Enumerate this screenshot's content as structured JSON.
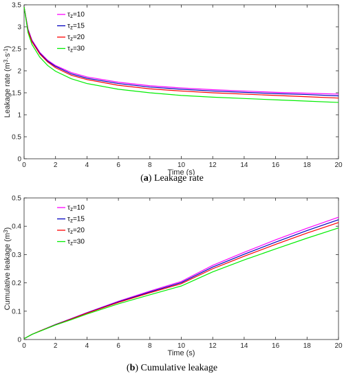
{
  "chart_data": [
    {
      "type": "line",
      "caption_letter": "a",
      "caption_text": "Leakage rate",
      "xlabel": "Time (s)",
      "ylabel_main": "Leakage rate (m",
      "ylabel_sup1": "3",
      "ylabel_mid": "·s",
      "ylabel_sup2": "-1",
      "ylabel_end": ")",
      "xlim": [
        0,
        20
      ],
      "ylim": [
        0,
        3.5
      ],
      "xticks": [
        0,
        2,
        4,
        6,
        8,
        10,
        12,
        14,
        16,
        18,
        20
      ],
      "yticks": [
        0,
        0.5,
        1,
        1.5,
        2,
        2.5,
        3,
        3.5
      ],
      "ytick_labels": [
        "0",
        "0.5",
        "1",
        "1.5",
        "2",
        "2.5",
        "3",
        "3.5"
      ],
      "grid": false,
      "legend_position": "top-left",
      "x": [
        0,
        0.25,
        0.5,
        1,
        1.5,
        2,
        3,
        4,
        6,
        8,
        10,
        12,
        14,
        16,
        18,
        20
      ],
      "series": [
        {
          "name_base": "τ",
          "name_sub": "z",
          "name_rest": "=10",
          "color": "#ff00ff",
          "values": [
            3.45,
            2.95,
            2.7,
            2.42,
            2.24,
            2.12,
            1.96,
            1.86,
            1.74,
            1.66,
            1.61,
            1.57,
            1.54,
            1.51,
            1.49,
            1.47
          ]
        },
        {
          "name_base": "τ",
          "name_sub": "z",
          "name_rest": "=15",
          "color": "#0000bf",
          "values": [
            3.45,
            2.93,
            2.68,
            2.4,
            2.22,
            2.1,
            1.93,
            1.83,
            1.71,
            1.63,
            1.58,
            1.54,
            1.51,
            1.48,
            1.46,
            1.43
          ]
        },
        {
          "name_base": "τ",
          "name_sub": "z",
          "name_rest": "=20",
          "color": "#ff0000",
          "values": [
            3.45,
            2.91,
            2.66,
            2.38,
            2.2,
            2.07,
            1.9,
            1.8,
            1.67,
            1.59,
            1.54,
            1.5,
            1.47,
            1.44,
            1.41,
            1.38
          ]
        },
        {
          "name_base": "τ",
          "name_sub": "z",
          "name_rest": "=30",
          "color": "#00ee00",
          "values": [
            3.45,
            2.87,
            2.6,
            2.31,
            2.12,
            1.99,
            1.82,
            1.71,
            1.58,
            1.5,
            1.44,
            1.4,
            1.37,
            1.34,
            1.31,
            1.28
          ]
        }
      ]
    },
    {
      "type": "line",
      "caption_letter": "b",
      "caption_text": "Cumulative leakage",
      "xlabel": "Time (s)",
      "ylabel_main": "Cumulative leakage (m",
      "ylabel_sup1": "3",
      "ylabel_mid": "",
      "ylabel_sup2": "",
      "ylabel_end": ")",
      "xlim": [
        0,
        20
      ],
      "ylim": [
        0,
        0.5
      ],
      "xticks": [
        0,
        2,
        4,
        6,
        8,
        10,
        12,
        14,
        16,
        18,
        20
      ],
      "yticks": [
        0,
        0.1,
        0.2,
        0.3,
        0.4,
        0.5
      ],
      "ytick_labels": [
        "0",
        "0.1",
        "0.2",
        "0.3",
        "0.4",
        "0.5"
      ],
      "grid": false,
      "legend_position": "top-left",
      "x": [
        0,
        0.5,
        1,
        2,
        3,
        4,
        6,
        8,
        10,
        12,
        14,
        16,
        18,
        20
      ],
      "series": [
        {
          "name_base": "τ",
          "name_sub": "z",
          "name_rest": "=10",
          "color": "#ff00ff",
          "values": [
            0.003,
            0.018,
            0.03,
            0.053,
            0.074,
            0.095,
            0.135,
            0.171,
            0.205,
            0.262,
            0.308,
            0.352,
            0.393,
            0.432
          ]
        },
        {
          "name_base": "τ",
          "name_sub": "z",
          "name_rest": "=15",
          "color": "#0000bf",
          "values": [
            0.003,
            0.018,
            0.03,
            0.053,
            0.073,
            0.094,
            0.133,
            0.168,
            0.201,
            0.256,
            0.301,
            0.344,
            0.385,
            0.423
          ]
        },
        {
          "name_base": "τ",
          "name_sub": "z",
          "name_rest": "=20",
          "color": "#ff0000",
          "values": [
            0.003,
            0.018,
            0.03,
            0.052,
            0.072,
            0.093,
            0.131,
            0.165,
            0.197,
            0.25,
            0.294,
            0.336,
            0.376,
            0.413
          ]
        },
        {
          "name_base": "τ",
          "name_sub": "z",
          "name_rest": "=30",
          "color": "#00ee00",
          "values": [
            0.003,
            0.018,
            0.029,
            0.051,
            0.07,
            0.09,
            0.126,
            0.158,
            0.189,
            0.239,
            0.281,
            0.32,
            0.358,
            0.394
          ]
        }
      ]
    }
  ]
}
